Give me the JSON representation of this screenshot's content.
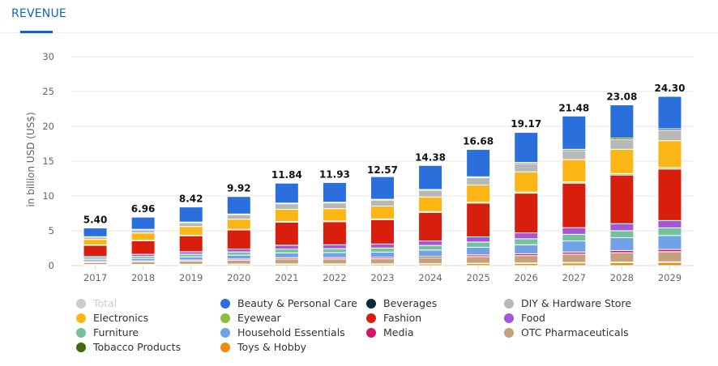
{
  "tab": {
    "label": "REVENUE"
  },
  "chart_data": {
    "type": "bar",
    "stacked": true,
    "title": "",
    "xlabel": "",
    "ylabel": "in billion USD (US$)",
    "ylim": [
      0,
      30
    ],
    "yticks": [
      0,
      5,
      10,
      15,
      20,
      25,
      30
    ],
    "grid": true,
    "legend_position": "bottom",
    "categories": [
      "2017",
      "2018",
      "2019",
      "2020",
      "2021",
      "2022",
      "2023",
      "2024",
      "2025",
      "2026",
      "2027",
      "2028",
      "2029"
    ],
    "totals": [
      5.4,
      6.96,
      8.42,
      9.92,
      11.84,
      11.93,
      12.57,
      14.38,
      16.68,
      19.17,
      21.48,
      23.08,
      24.3
    ],
    "total_labels": [
      "5.40",
      "6.96",
      "8.42",
      "9.92",
      "11.84",
      "11.93",
      "12.57",
      "14.38",
      "16.68",
      "19.17",
      "21.48",
      "23.08",
      "24.30"
    ],
    "legend": [
      {
        "name": "Total",
        "color": "#cccccc",
        "disabled": true
      },
      {
        "name": "Beauty & Personal Care",
        "color": "#2a6fdb"
      },
      {
        "name": "Beverages",
        "color": "#0c2a3d"
      },
      {
        "name": "DIY & Hardware Store",
        "color": "#b8b8b8"
      },
      {
        "name": "Electronics",
        "color": "#fbb616"
      },
      {
        "name": "Eyewear",
        "color": "#8bbd3a"
      },
      {
        "name": "Fashion",
        "color": "#d81f0d"
      },
      {
        "name": "Food",
        "color": "#a456d4"
      },
      {
        "name": "Furniture",
        "color": "#72c29a"
      },
      {
        "name": "Household Essentials",
        "color": "#72a2e6"
      },
      {
        "name": "Media",
        "color": "#d6136b"
      },
      {
        "name": "OTC Pharmaceuticals",
        "color": "#c6a07a"
      },
      {
        "name": "Tobacco Products",
        "color": "#3e6b12"
      },
      {
        "name": "Toys & Hobby",
        "color": "#f08a12"
      }
    ],
    "series": [
      {
        "name": "Toys & Hobby",
        "color": "#f08a12",
        "values": [
          0.12,
          0.14,
          0.16,
          0.18,
          0.2,
          0.2,
          0.21,
          0.24,
          0.28,
          0.32,
          0.38,
          0.42,
          0.45
        ]
      },
      {
        "name": "Tobacco Products",
        "color": "#3e6b12",
        "values": [
          0.03,
          0.03,
          0.04,
          0.04,
          0.05,
          0.05,
          0.05,
          0.06,
          0.06,
          0.07,
          0.08,
          0.09,
          0.1
        ]
      },
      {
        "name": "OTC Pharmaceuticals",
        "color": "#c6a07a",
        "values": [
          0.3,
          0.38,
          0.46,
          0.56,
          0.68,
          0.7,
          0.72,
          0.82,
          0.95,
          1.05,
          1.2,
          1.35,
          1.45
        ]
      },
      {
        "name": "Media",
        "color": "#d6136b",
        "values": [
          0.12,
          0.14,
          0.15,
          0.17,
          0.2,
          0.2,
          0.21,
          0.22,
          0.24,
          0.26,
          0.28,
          0.3,
          0.32
        ]
      },
      {
        "name": "Household Essentials",
        "color": "#72a2e6",
        "values": [
          0.28,
          0.35,
          0.45,
          0.55,
          0.7,
          0.72,
          0.75,
          0.9,
          1.1,
          1.3,
          1.6,
          1.85,
          2.0
        ]
      },
      {
        "name": "Furniture",
        "color": "#72c29a",
        "values": [
          0.25,
          0.3,
          0.38,
          0.46,
          0.55,
          0.56,
          0.58,
          0.65,
          0.75,
          0.85,
          0.95,
          1.0,
          1.1
        ]
      },
      {
        "name": "Food",
        "color": "#a456d4",
        "values": [
          0.22,
          0.28,
          0.35,
          0.42,
          0.55,
          0.56,
          0.58,
          0.65,
          0.75,
          0.85,
          0.95,
          1.0,
          1.05
        ]
      },
      {
        "name": "Fashion",
        "color": "#d81f0d",
        "values": [
          1.6,
          1.95,
          2.3,
          2.75,
          3.3,
          3.32,
          3.5,
          4.1,
          4.85,
          5.7,
          6.4,
          7.0,
          7.4
        ]
      },
      {
        "name": "Eyewear",
        "color": "#8bbd3a",
        "values": [
          0.06,
          0.07,
          0.08,
          0.09,
          0.1,
          0.1,
          0.1,
          0.12,
          0.14,
          0.16,
          0.18,
          0.2,
          0.22
        ]
      },
      {
        "name": "Electronics",
        "color": "#fbb616",
        "values": [
          0.78,
          1.05,
          1.25,
          1.45,
          1.75,
          1.77,
          1.85,
          2.1,
          2.45,
          2.9,
          3.2,
          3.5,
          3.85
        ]
      },
      {
        "name": "DIY & Hardware Store",
        "color": "#b8b8b8",
        "values": [
          0.33,
          0.45,
          0.55,
          0.65,
          0.8,
          0.82,
          0.86,
          0.95,
          1.05,
          1.2,
          1.3,
          1.4,
          1.5
        ]
      },
      {
        "name": "Beverages",
        "color": "#0c2a3d",
        "values": [
          0.06,
          0.07,
          0.08,
          0.09,
          0.1,
          0.1,
          0.11,
          0.12,
          0.14,
          0.16,
          0.18,
          0.2,
          0.22
        ]
      },
      {
        "name": "Beauty & Personal Care",
        "color": "#2a6fdb",
        "values": [
          1.25,
          1.75,
          2.17,
          2.51,
          2.86,
          2.83,
          3.25,
          3.45,
          3.92,
          4.3,
          4.78,
          4.77,
          4.64
        ]
      }
    ]
  }
}
